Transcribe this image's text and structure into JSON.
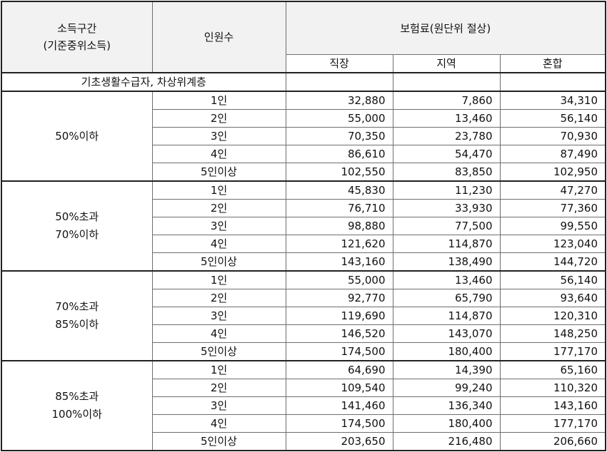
{
  "header": {
    "income_bracket": [
      "소득구간",
      "(기준중위소득)"
    ],
    "persons": "인원수",
    "premium": "보험료(원단위 절상)",
    "cols": [
      "직장",
      "지역",
      "혼합"
    ]
  },
  "basic_row": "기초생활수급자, 차상위계층",
  "groups": [
    {
      "label": [
        "50%이하"
      ],
      "rows": [
        {
          "persons": "1인",
          "values": [
            "32,880",
            "7,860",
            "34,310"
          ]
        },
        {
          "persons": "2인",
          "values": [
            "55,000",
            "13,460",
            "56,140"
          ]
        },
        {
          "persons": "3인",
          "values": [
            "70,350",
            "23,780",
            "70,930"
          ]
        },
        {
          "persons": "4인",
          "values": [
            "86,610",
            "54,470",
            "87,490"
          ]
        },
        {
          "persons": "5인이상",
          "values": [
            "102,550",
            "83,850",
            "102,950"
          ]
        }
      ]
    },
    {
      "label": [
        "50%초과",
        "70%이하"
      ],
      "rows": [
        {
          "persons": "1인",
          "values": [
            "45,830",
            "11,230",
            "47,270"
          ]
        },
        {
          "persons": "2인",
          "values": [
            "76,710",
            "33,930",
            "77,360"
          ]
        },
        {
          "persons": "3인",
          "values": [
            "98,880",
            "77,500",
            "99,550"
          ]
        },
        {
          "persons": "4인",
          "values": [
            "121,620",
            "114,870",
            "123,040"
          ]
        },
        {
          "persons": "5인이상",
          "values": [
            "143,160",
            "138,490",
            "144,720"
          ]
        }
      ]
    },
    {
      "label": [
        "70%초과",
        "85%이하"
      ],
      "rows": [
        {
          "persons": "1인",
          "values": [
            "55,000",
            "13,460",
            "56,140"
          ]
        },
        {
          "persons": "2인",
          "values": [
            "92,770",
            "65,790",
            "93,640"
          ]
        },
        {
          "persons": "3인",
          "values": [
            "119,690",
            "114,870",
            "120,310"
          ]
        },
        {
          "persons": "4인",
          "values": [
            "146,520",
            "143,070",
            "148,250"
          ]
        },
        {
          "persons": "5인이상",
          "values": [
            "174,500",
            "180,400",
            "177,170"
          ]
        }
      ]
    },
    {
      "label": [
        "85%초과",
        "100%이하"
      ],
      "rows": [
        {
          "persons": "1인",
          "values": [
            "64,690",
            "14,390",
            "65,160"
          ]
        },
        {
          "persons": "2인",
          "values": [
            "109,540",
            "99,240",
            "110,320"
          ]
        },
        {
          "persons": "3인",
          "values": [
            "141,460",
            "136,340",
            "143,160"
          ]
        },
        {
          "persons": "4인",
          "values": [
            "174,500",
            "180,400",
            "177,170"
          ]
        },
        {
          "persons": "5인이상",
          "values": [
            "203,650",
            "216,480",
            "206,660"
          ]
        }
      ]
    }
  ]
}
